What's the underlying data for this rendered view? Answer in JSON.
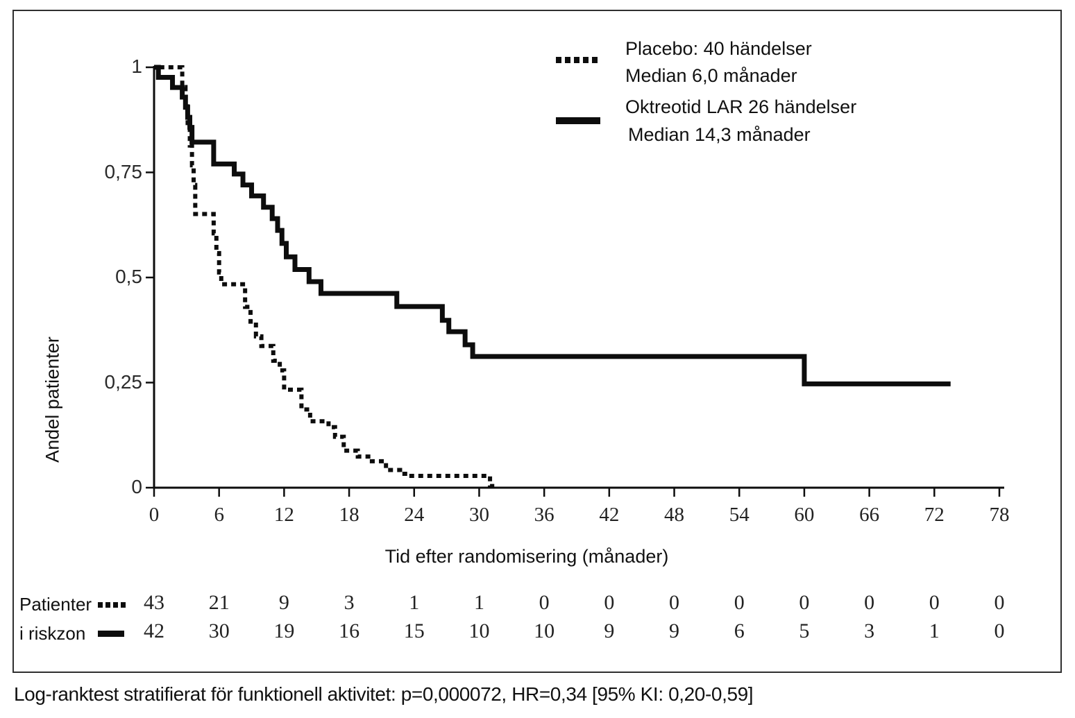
{
  "legend": {
    "placebo_line1": "Placebo: 40 händelser",
    "placebo_line2": "Median 6,0 månader",
    "octreotide_line1": "Oktreotid LAR 26 händelser",
    "octreotide_line2": "Median 14,3 månader"
  },
  "axes": {
    "y_label": "Andel patienter",
    "x_label": "Tid efter randomisering (månader)",
    "y_tick_labels": [
      "1",
      "0,75",
      "0,5",
      "0,25",
      "0"
    ],
    "y_tick_values": [
      1,
      0.75,
      0.5,
      0.25,
      0
    ],
    "x_tick_labels": [
      "0",
      "6",
      "12",
      "18",
      "24",
      "30",
      "36",
      "42",
      "48",
      "54",
      "60",
      "66",
      "72",
      "78"
    ],
    "x_tick_values": [
      0,
      6,
      12,
      18,
      24,
      30,
      36,
      42,
      48,
      54,
      60,
      66,
      72,
      78
    ]
  },
  "risk_table": {
    "row_label_line1": "Patienter",
    "row_label_line2": "i riskzon",
    "rows": [
      {
        "name": "Placebo",
        "marker": "dotted",
        "counts": [
          "43",
          "21",
          "9",
          "3",
          "1",
          "1",
          "0",
          "0",
          "0",
          "0",
          "0",
          "0",
          "0",
          "0"
        ]
      },
      {
        "name": "Oktreotid LAR",
        "marker": "solid",
        "counts": [
          "42",
          "30",
          "19",
          "16",
          "15",
          "10",
          "10",
          "9",
          "9",
          "6",
          "5",
          "3",
          "1",
          "0"
        ]
      }
    ]
  },
  "footnote": "Log-ranktest stratifierat för funktionell aktivitet: p=0,000072, HR=0,34 [95% KI: 0,20-0,59]",
  "colors": {
    "line": "#0d0d0d",
    "text": "#111111",
    "border": "#2f2f2f"
  },
  "chart_data": {
    "type": "line",
    "subtype": "kaplan-meier-step",
    "title": "",
    "xlabel": "Tid efter randomisering (månader)",
    "ylabel": "Andel patienter",
    "xlim": [
      0,
      78
    ],
    "ylim": [
      0,
      1
    ],
    "x_ticks": [
      0,
      6,
      12,
      18,
      24,
      30,
      36,
      42,
      48,
      54,
      60,
      66,
      72,
      78
    ],
    "y_ticks": [
      0,
      0.25,
      0.5,
      0.75,
      1
    ],
    "grid": false,
    "legend_position": "top-right",
    "series": [
      {
        "name": "Placebo",
        "events": 40,
        "median_months": 6.0,
        "line_style": "dotted",
        "start": [
          0.5,
          1.0
        ],
        "steps": [
          [
            2.6,
            0.953
          ],
          [
            2.9,
            0.907
          ],
          [
            3.1,
            0.86
          ],
          [
            3.3,
            0.814
          ],
          [
            3.5,
            0.767
          ],
          [
            3.65,
            0.72
          ],
          [
            3.8,
            0.651
          ],
          [
            5.5,
            0.605
          ],
          [
            5.75,
            0.558
          ],
          [
            6.0,
            0.512
          ],
          [
            6.2,
            0.484
          ],
          [
            8.4,
            0.43
          ],
          [
            8.9,
            0.395
          ],
          [
            9.4,
            0.36
          ],
          [
            9.9,
            0.337
          ],
          [
            11.0,
            0.302
          ],
          [
            11.6,
            0.279
          ],
          [
            12.0,
            0.233
          ],
          [
            13.6,
            0.186
          ],
          [
            14.4,
            0.158
          ],
          [
            16.1,
            0.144
          ],
          [
            16.7,
            0.121
          ],
          [
            17.5,
            0.088
          ],
          [
            18.8,
            0.074
          ],
          [
            20.1,
            0.063
          ],
          [
            21.4,
            0.042
          ],
          [
            22.7,
            0.033
          ],
          [
            23.4,
            0.028
          ],
          [
            31.0,
            0.004
          ]
        ],
        "end_x": 31.5
      },
      {
        "name": "Oktreotid LAR",
        "events": 26,
        "median_months": 14.3,
        "line_style": "solid",
        "start": [
          0,
          1.0
        ],
        "steps": [
          [
            0.4,
            0.976
          ],
          [
            1.7,
            0.952
          ],
          [
            2.6,
            0.929
          ],
          [
            2.9,
            0.905
          ],
          [
            3.1,
            0.881
          ],
          [
            3.3,
            0.857
          ],
          [
            3.5,
            0.822
          ],
          [
            5.5,
            0.77
          ],
          [
            7.4,
            0.746
          ],
          [
            8.2,
            0.72
          ],
          [
            9.0,
            0.694
          ],
          [
            10.1,
            0.667
          ],
          [
            10.9,
            0.64
          ],
          [
            11.4,
            0.612
          ],
          [
            11.8,
            0.581
          ],
          [
            12.2,
            0.549
          ],
          [
            13.0,
            0.519
          ],
          [
            14.3,
            0.49
          ],
          [
            15.4,
            0.462
          ],
          [
            22.4,
            0.431
          ],
          [
            26.6,
            0.398
          ],
          [
            27.2,
            0.371
          ],
          [
            28.7,
            0.34
          ],
          [
            29.4,
            0.312
          ],
          [
            60.0,
            0.247
          ]
        ],
        "end_x": 73.5
      }
    ]
  }
}
